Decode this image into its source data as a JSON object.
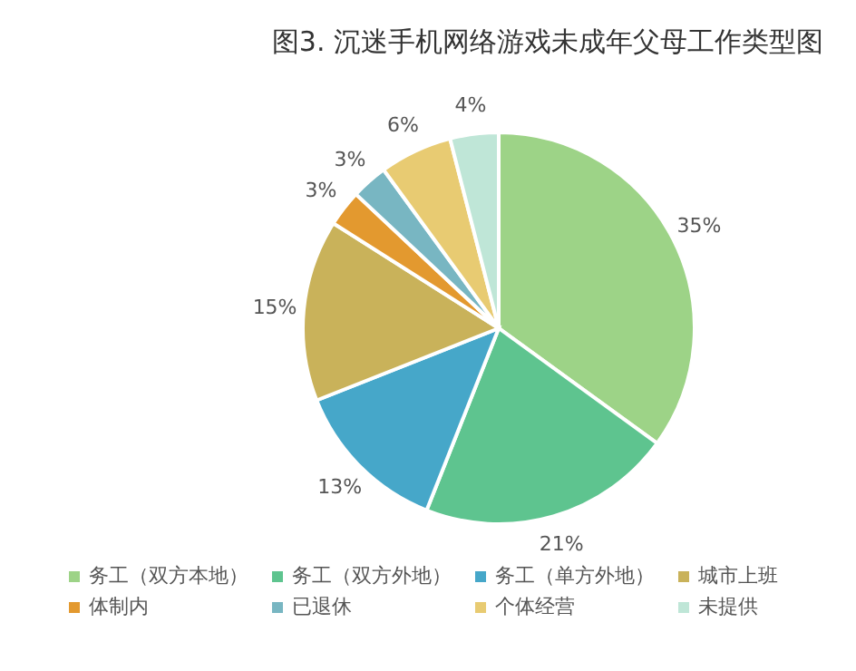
{
  "chart_data": {
    "type": "pie",
    "title": "图3. 沉迷手机网络游戏未成年父母工作类型图",
    "categories": [
      "务工（双方本地）",
      "务工（双方外地）",
      "务工（单方外地）",
      "城市上班",
      "体制内",
      "已退休",
      "个体经营",
      "未提供"
    ],
    "values": [
      35,
      21,
      13,
      15,
      3,
      3,
      6,
      4
    ],
    "value_labels": [
      "35%",
      "21%",
      "13%",
      "15%",
      "3%",
      "3%",
      "6%",
      "4%"
    ],
    "colors": [
      "#9dd387",
      "#5ec48f",
      "#46a7c9",
      "#c9b25a",
      "#e3992f",
      "#78b6c2",
      "#e8cb72",
      "#bfe6d7"
    ],
    "legend": "bottom"
  }
}
